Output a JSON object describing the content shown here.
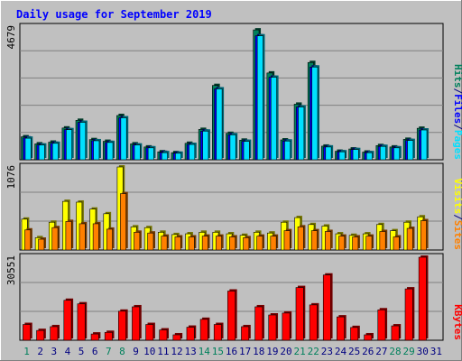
{
  "title": "Daily usage for September 2019",
  "colors": {
    "background": "#c0c0c0",
    "title": "#0000ff",
    "hits": "#00805c",
    "files": "#0000ff",
    "pages": "#00e0ff",
    "visits": "#ffff00",
    "sites": "#ff8000",
    "kbytes": "#ff0000",
    "weekend_label": "#00805c",
    "weekday_label": "#000080"
  },
  "chart_data": [
    {
      "type": "bar",
      "name": "hits-files-pages",
      "categories": [
        "1",
        "2",
        "3",
        "4",
        "5",
        "6",
        "7",
        "8",
        "9",
        "10",
        "11",
        "12",
        "13",
        "14",
        "15",
        "16",
        "17",
        "18",
        "19",
        "20",
        "21",
        "22",
        "23",
        "24",
        "25",
        "26",
        "27",
        "28",
        "29",
        "30",
        "31"
      ],
      "ymax_label": "4679",
      "ylim": [
        0,
        4679
      ],
      "legend": [
        {
          "text": "Pages",
          "color_key": "pages"
        },
        {
          "text": "/",
          "color_key": "weekday_label"
        },
        {
          "text": "Files",
          "color_key": "files"
        },
        {
          "text": "/",
          "color_key": "weekday_label"
        },
        {
          "text": "Hits",
          "color_key": "hits"
        }
      ],
      "series": [
        {
          "name": "Hits",
          "values": [
            810,
            560,
            620,
            1120,
            1390,
            710,
            650,
            1560,
            560,
            450,
            280,
            250,
            580,
            1070,
            2620,
            930,
            690,
            4580,
            3060,
            700,
            1960,
            3430,
            480,
            300,
            380,
            270,
            500,
            450,
            720,
            1110,
            0
          ]
        },
        {
          "name": "Files",
          "values": [
            770,
            520,
            580,
            1060,
            1320,
            670,
            610,
            1480,
            520,
            420,
            260,
            230,
            540,
            1010,
            2500,
            880,
            650,
            4370,
            2910,
            660,
            1860,
            3270,
            450,
            280,
            360,
            250,
            470,
            420,
            680,
            1050,
            0
          ]
        },
        {
          "name": "Pages",
          "values": [
            760,
            520,
            580,
            1060,
            1320,
            670,
            610,
            1480,
            520,
            420,
            250,
            230,
            540,
            1010,
            2500,
            880,
            650,
            4370,
            2910,
            660,
            1860,
            3270,
            450,
            280,
            360,
            250,
            470,
            420,
            680,
            1050,
            0
          ]
        }
      ]
    },
    {
      "type": "bar",
      "name": "visits-sites",
      "categories": [
        "1",
        "2",
        "3",
        "4",
        "5",
        "6",
        "7",
        "8",
        "9",
        "10",
        "11",
        "12",
        "13",
        "14",
        "15",
        "16",
        "17",
        "18",
        "19",
        "20",
        "21",
        "22",
        "23",
        "24",
        "25",
        "26",
        "27",
        "28",
        "29",
        "30",
        "31"
      ],
      "ymax_label": "1076",
      "ylim": [
        0,
        1076
      ],
      "legend": [
        {
          "text": "Sites",
          "color_key": "sites"
        },
        {
          "text": "/",
          "color_key": "weekday_label"
        },
        {
          "text": "Visits",
          "color_key": "visits"
        }
      ],
      "series": [
        {
          "name": "Visits",
          "values": [
            400,
            160,
            360,
            630,
            620,
            530,
            470,
            1076,
            300,
            290,
            230,
            200,
            210,
            230,
            230,
            210,
            190,
            230,
            220,
            360,
            420,
            330,
            310,
            210,
            190,
            210,
            330,
            250,
            360,
            430,
            0
          ]
        },
        {
          "name": "Sites",
          "values": [
            260,
            140,
            290,
            370,
            340,
            340,
            270,
            730,
            230,
            220,
            180,
            170,
            170,
            180,
            180,
            170,
            160,
            180,
            180,
            250,
            300,
            250,
            240,
            180,
            170,
            180,
            240,
            170,
            280,
            380,
            0
          ]
        }
      ]
    },
    {
      "type": "bar",
      "name": "kbytes",
      "categories": [
        "1",
        "2",
        "3",
        "4",
        "5",
        "6",
        "7",
        "8",
        "9",
        "10",
        "11",
        "12",
        "13",
        "14",
        "15",
        "16",
        "17",
        "18",
        "19",
        "20",
        "21",
        "22",
        "23",
        "24",
        "25",
        "26",
        "27",
        "28",
        "29",
        "30",
        "31"
      ],
      "ymax_label": "30551",
      "ylim": [
        0,
        30551
      ],
      "legend": [
        {
          "text": "KBytes",
          "color_key": "kbytes"
        }
      ],
      "series": [
        {
          "name": "KBytes",
          "values": [
            5800,
            3600,
            5000,
            14700,
            13400,
            2300,
            2900,
            10700,
            12300,
            5800,
            3800,
            2000,
            4800,
            7700,
            5800,
            18100,
            5000,
            12300,
            9300,
            10000,
            19400,
            13000,
            24000,
            8600,
            4700,
            2000,
            11200,
            5300,
            18900,
            30551,
            0
          ]
        }
      ]
    }
  ],
  "weekend_days": [
    1,
    7,
    8,
    14,
    15,
    21,
    22,
    28,
    29
  ]
}
